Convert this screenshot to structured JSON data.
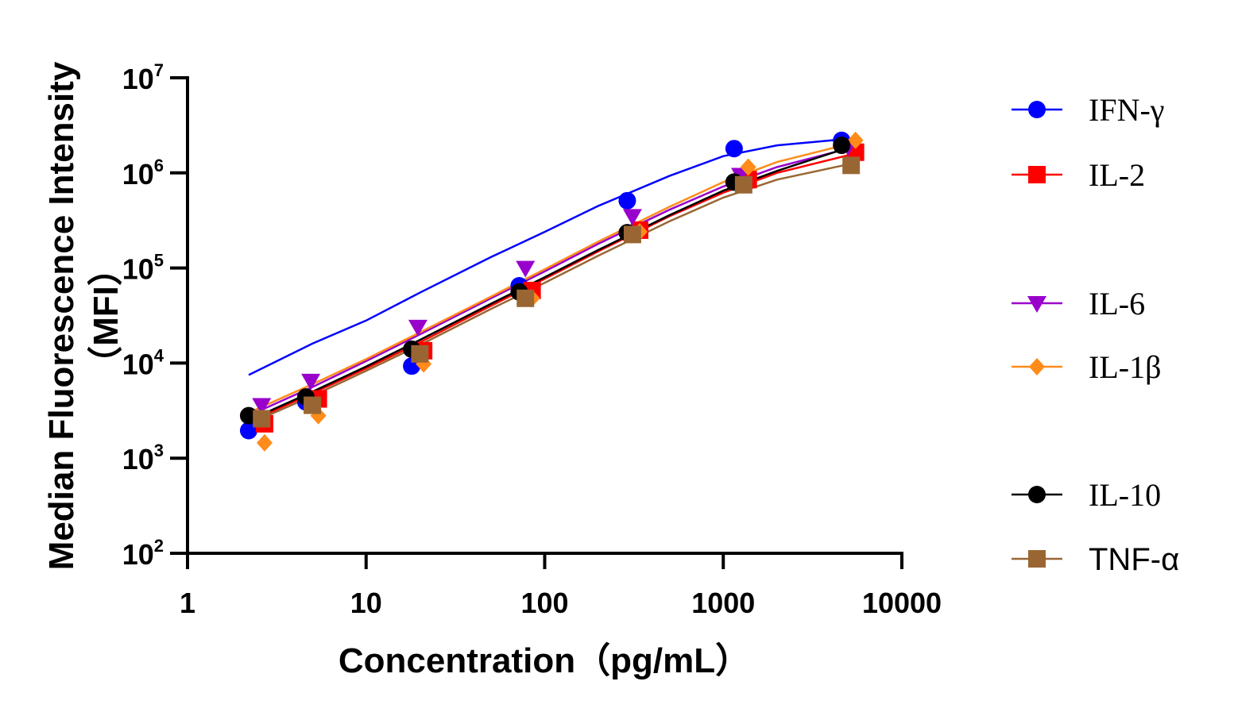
{
  "chart_data": {
    "type": "scatter",
    "xlabel": "Concentration（pg/mL）",
    "ylabel_line1": "Median Fluorescence Intensity",
    "ylabel_line2": "（MFI）",
    "x_scale": "log",
    "y_scale": "log",
    "xlim": [
      1,
      10000
    ],
    "ylim": [
      100,
      10000000
    ],
    "x_ticks": [
      {
        "value": 1,
        "label": "1"
      },
      {
        "value": 10,
        "label": "10"
      },
      {
        "value": 100,
        "label": "100"
      },
      {
        "value": 1000,
        "label": "1000"
      },
      {
        "value": 10000,
        "label": "10000"
      }
    ],
    "y_ticks": [
      {
        "value": 100,
        "base": "10",
        "exp": "2"
      },
      {
        "value": 1000,
        "base": "10",
        "exp": "3"
      },
      {
        "value": 10000,
        "base": "10",
        "exp": "4"
      },
      {
        "value": 100000,
        "base": "10",
        "exp": "5"
      },
      {
        "value": 1000000,
        "base": "10",
        "exp": "6"
      },
      {
        "value": 10000000,
        "base": "10",
        "exp": "7"
      }
    ],
    "grid": false,
    "legend_position": "right",
    "series": [
      {
        "name": "IFN-γ",
        "color": "#0000ff",
        "marker": "circle",
        "serif": true,
        "points": [
          [
            2.2,
            1950
          ],
          [
            4.6,
            3900
          ],
          [
            18,
            9300
          ],
          [
            72,
            65000
          ],
          [
            290,
            510000
          ],
          [
            1150,
            1800000
          ],
          [
            4600,
            2200000
          ]
        ],
        "curve": [
          [
            2.2,
            7500
          ],
          [
            5,
            16000
          ],
          [
            10,
            28000
          ],
          [
            20,
            55000
          ],
          [
            50,
            130000
          ],
          [
            100,
            240000
          ],
          [
            200,
            450000
          ],
          [
            500,
            930000
          ],
          [
            1000,
            1500000
          ],
          [
            2000,
            1950000
          ],
          [
            4600,
            2250000
          ]
        ]
      },
      {
        "name": "IL-2",
        "color": "#ff0000",
        "marker": "square",
        "serif": true,
        "points": [
          [
            2.7,
            2300
          ],
          [
            5.4,
            4200
          ],
          [
            21,
            13500
          ],
          [
            85,
            58000
          ],
          [
            340,
            250000
          ],
          [
            1380,
            850000
          ],
          [
            5500,
            1650000
          ]
        ],
        "curve": [
          [
            2.2,
            2400
          ],
          [
            5,
            4800
          ],
          [
            10,
            8800
          ],
          [
            20,
            16500
          ],
          [
            50,
            40000
          ],
          [
            100,
            77000
          ],
          [
            200,
            150000
          ],
          [
            500,
            350000
          ],
          [
            1000,
            620000
          ],
          [
            2000,
            1000000
          ],
          [
            5500,
            1600000
          ]
        ]
      },
      {
        "name": "IL-6",
        "color": "#9900cc",
        "marker": "triangle-down",
        "serif": true,
        "points": [
          [
            2.6,
            3600
          ],
          [
            4.9,
            6500
          ],
          [
            19.5,
            24000
          ],
          [
            78,
            100000
          ],
          [
            310,
            350000
          ],
          [
            1250,
            950000
          ],
          [
            5000,
            1900000
          ]
        ],
        "curve": [
          [
            2.2,
            2800
          ],
          [
            5,
            5600
          ],
          [
            10,
            10500
          ],
          [
            20,
            20000
          ],
          [
            50,
            48000
          ],
          [
            100,
            92000
          ],
          [
            200,
            180000
          ],
          [
            500,
            410000
          ],
          [
            1000,
            720000
          ],
          [
            2000,
            1150000
          ],
          [
            5000,
            1800000
          ]
        ]
      },
      {
        "name": "IL-1β",
        "color": "#ff8c1a",
        "marker": "diamond",
        "serif": true,
        "points": [
          [
            2.7,
            1450
          ],
          [
            5.4,
            2800
          ],
          [
            21,
            9800
          ],
          [
            85,
            48000
          ],
          [
            340,
            240000
          ],
          [
            1380,
            1150000
          ],
          [
            5500,
            2200000
          ]
        ],
        "curve": [
          [
            2.2,
            3000
          ],
          [
            5,
            6000
          ],
          [
            10,
            11000
          ],
          [
            20,
            21000
          ],
          [
            50,
            50000
          ],
          [
            100,
            97000
          ],
          [
            200,
            190000
          ],
          [
            500,
            440000
          ],
          [
            1000,
            800000
          ],
          [
            2000,
            1300000
          ],
          [
            5500,
            2100000
          ]
        ]
      },
      {
        "name": "IL-10",
        "color": "#000000",
        "marker": "circle",
        "serif": true,
        "points": [
          [
            2.2,
            2800
          ],
          [
            4.6,
            4400
          ],
          [
            18,
            14000
          ],
          [
            72,
            56000
          ],
          [
            290,
            235000
          ],
          [
            1150,
            800000
          ],
          [
            4600,
            1950000
          ]
        ],
        "curve": [
          [
            2.2,
            2500
          ],
          [
            5,
            5000
          ],
          [
            10,
            9200
          ],
          [
            20,
            17500
          ],
          [
            50,
            42000
          ],
          [
            100,
            80000
          ],
          [
            200,
            155000
          ],
          [
            500,
            360000
          ],
          [
            1000,
            650000
          ],
          [
            2000,
            1050000
          ],
          [
            4600,
            1750000
          ]
        ]
      },
      {
        "name": "TNF-α",
        "color": "#996633",
        "marker": "square",
        "serif": false,
        "points": [
          [
            2.6,
            2600
          ],
          [
            5,
            3600
          ],
          [
            20,
            12500
          ],
          [
            78,
            48000
          ],
          [
            310,
            225000
          ],
          [
            1300,
            750000
          ],
          [
            5200,
            1200000
          ]
        ],
        "curve": [
          [
            2.2,
            2300
          ],
          [
            5,
            4500
          ],
          [
            10,
            8300
          ],
          [
            20,
            15500
          ],
          [
            50,
            37000
          ],
          [
            100,
            70000
          ],
          [
            200,
            135000
          ],
          [
            500,
            310000
          ],
          [
            1000,
            550000
          ],
          [
            2000,
            850000
          ],
          [
            5200,
            1250000
          ]
        ]
      }
    ]
  }
}
